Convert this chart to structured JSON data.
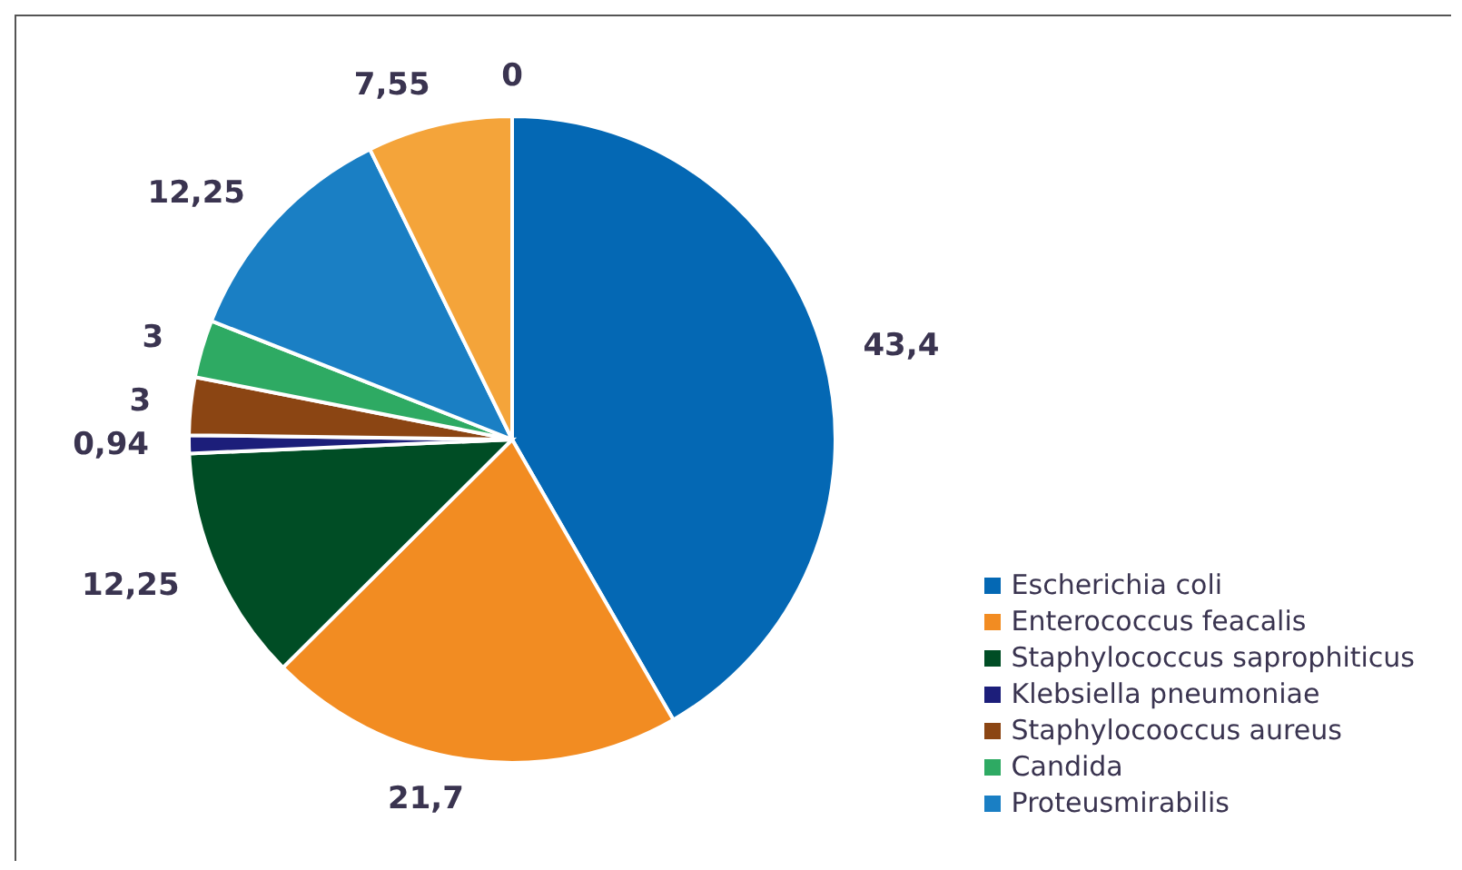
{
  "chart_data": {
    "type": "pie",
    "categories": [
      "Escherichia coli",
      "Enterococcus feacalis",
      "Staphylococcus saprophiticus",
      "Klebsiella pneumoniae",
      "Staphylocooccus aureus",
      "Candida",
      "Proteusmirabilis",
      null,
      null
    ],
    "values": [
      43.4,
      21.7,
      12.25,
      0.94,
      3,
      3,
      12.25,
      7.55,
      0
    ],
    "value_labels": [
      "43,4",
      "21,7",
      "12,25",
      "0,94",
      "3",
      "3",
      "12,25",
      "7,55",
      "0"
    ],
    "colors": [
      "#0468b4",
      "#f28c22",
      "#004d25",
      "#1c1e7a",
      "#8b4513",
      "#2eaa63",
      "#1a7fc4",
      "#f4a43a",
      "#0468b4"
    ],
    "legend": "bottom right"
  }
}
